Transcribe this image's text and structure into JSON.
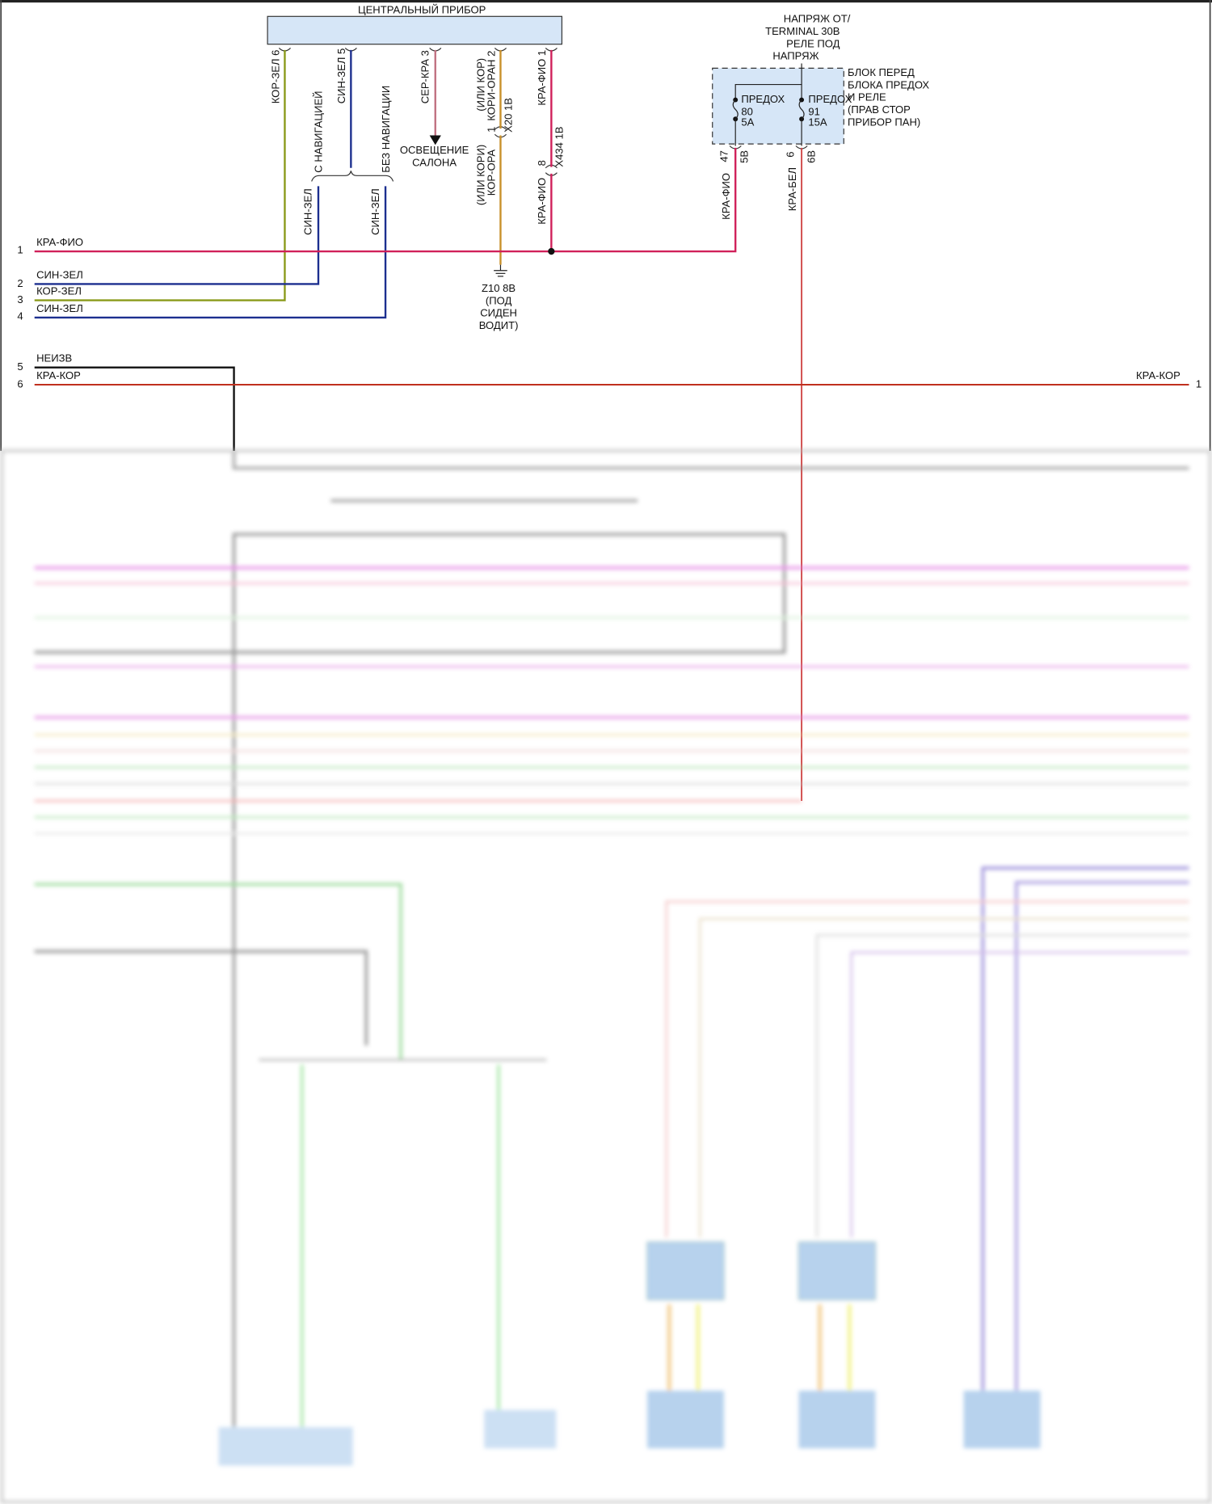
{
  "central_unit": {
    "title": "ЦЕНТРАЛЬНЫЙ ПРИБОР",
    "pin6": "КОР-ЗЕЛ 6",
    "pin5": "СИН-ЗЕЛ 5",
    "pin3": "СЕР-КРА 3",
    "pin2_line1": "(ИЛИ КОР)",
    "pin2_line2": "КОРИ-ОРАН 2",
    "conn_x20_pin": "1",
    "conn_x20": "X20 1В",
    "pin2_lower_line1": "(ИЛИ КОРИ)",
    "pin2_lower_line2": "КОР-ОРА",
    "pin1": "КРА-ФИО 1",
    "conn_x434_pin": "8",
    "conn_x434": "X434 1В",
    "pin1_lower": "КРА-ФИО"
  },
  "options": {
    "with_nav": "С НАВИГАЦИЕЙ",
    "without_nav": "БЕЗ НАВИГАЦИИ",
    "with_nav_wire": "СИН-ЗЕЛ",
    "without_nav_wire": "СИН-ЗЕЛ"
  },
  "lighting": {
    "line1": "ОСВЕЩЕНИЕ",
    "line2": "САЛОНА"
  },
  "ground": {
    "line1": "Z10 8В",
    "line2": "(ПОД",
    "line3": "СИДЕН",
    "line4": "ВОДИТ)"
  },
  "fuse_box": {
    "supply_lines": [
      "НАПРЯЖ ОТ/",
      "TERMINAL 30В",
      "РЕЛЕ ПОД",
      "НАПРЯЖ"
    ],
    "name_lines": [
      "БЛОК ПЕРЕД",
      "БЛОКА ПРЕДОХ",
      "И РЕЛЕ",
      "(ПРАВ СТОР",
      "ПРИБОР ПАН)"
    ],
    "fuse_a": {
      "label": "ПРЕДОХ",
      "number": "80",
      "rating": "5A"
    },
    "fuse_b": {
      "label": "ПРЕДОХ",
      "number": "91",
      "rating": "15A"
    },
    "pin_a": "47",
    "pin_a_conn": "5В",
    "wire_a": "КРА-ФИО",
    "pin_b": "6",
    "pin_b_conn": "6В",
    "wire_b": "КРА-БЕЛ"
  },
  "left_wires": [
    {
      "num": "1",
      "label": "КРА-ФИО"
    },
    {
      "num": "2",
      "label": "СИН-ЗЕЛ"
    },
    {
      "num": "3",
      "label": "КОР-ЗЕЛ"
    },
    {
      "num": "4",
      "label": "СИН-ЗЕЛ"
    },
    {
      "num": "5",
      "label": "НЕИЗВ"
    },
    {
      "num": "6",
      "label": "КРА-КОР"
    }
  ],
  "right_wire": {
    "label": "КРА-КОР",
    "num": "1"
  },
  "colors": {
    "red_violet": "#d0205a",
    "blue_green": "#1c2f8f",
    "brown_green": "#8a9a1a",
    "grey_red": "#c07080",
    "brown_orange": "#c8902a",
    "red_brown": "#c0301e",
    "red_white": "#d04848",
    "fuse_box_fill": "#d6e6f7"
  }
}
